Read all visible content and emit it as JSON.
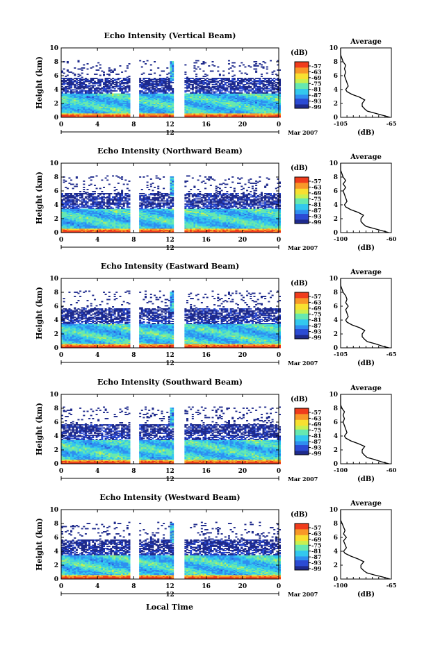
{
  "figure": {
    "x_title": "Local Time",
    "date_label": "Mar 2007",
    "day_mark_label": "12",
    "colorbar_unit": "(dB)",
    "colorbar_ticks": [
      "-57",
      "-63",
      "-69",
      "-75",
      "-81",
      "-87",
      "-93",
      "-99"
    ],
    "colormap": [
      "#1e2a8c",
      "#2b4bd4",
      "#2f8ff0",
      "#33c8ee",
      "#66e8b0",
      "#c8f050",
      "#f8e030",
      "#f89828",
      "#f03c1c"
    ]
  },
  "chart_data": [
    {
      "type": "heatmap",
      "title": "Echo Intensity (Vertical Beam)",
      "ylabel": "Height (km)",
      "x_ticks": [
        "0",
        "4",
        "8",
        "12",
        "16",
        "20",
        "0"
      ],
      "y_ticks": [
        "0",
        "2",
        "4",
        "6",
        "8",
        "10"
      ],
      "xlim": [
        0,
        24
      ],
      "ylim": [
        0,
        10
      ],
      "data_gaps": [
        [
          7.7,
          8.5
        ],
        [
          12.4,
          13.4
        ]
      ],
      "avg_profile": {
        "title": "Average",
        "xlabel": "(dB)",
        "x_ticks": [
          "-105",
          "-65"
        ],
        "xlim": [
          -105,
          -65
        ],
        "ylim": [
          0,
          10
        ],
        "height": [
          0.0,
          0.3,
          0.6,
          0.9,
          1.2,
          1.6,
          2.0,
          2.5,
          2.9,
          3.3,
          3.7,
          4.0,
          4.5,
          5.0,
          5.5,
          6.0,
          6.5,
          7.0,
          7.5,
          8.0,
          8.5,
          9.0,
          10.0
        ],
        "db": [
          -66,
          -72,
          -78,
          -84,
          -86,
          -88,
          -88,
          -86,
          -90,
          -96,
          -100,
          -101,
          -99,
          -100,
          -101,
          -102,
          -101,
          -102,
          -101,
          -103,
          -104,
          -105,
          -105
        ]
      }
    },
    {
      "type": "heatmap",
      "title": "Echo Intensity (Northward Beam)",
      "ylabel": "Height (km)",
      "x_ticks": [
        "0",
        "4",
        "8",
        "12",
        "16",
        "20",
        "0"
      ],
      "y_ticks": [
        "0",
        "2",
        "4",
        "6",
        "8",
        "10"
      ],
      "xlim": [
        0,
        24
      ],
      "ylim": [
        0,
        10
      ],
      "data_gaps": [
        [
          7.7,
          8.5
        ],
        [
          12.4,
          13.4
        ]
      ],
      "avg_profile": {
        "title": "Average",
        "xlabel": "(dB)",
        "x_ticks": [
          "-100",
          "-60"
        ],
        "xlim": [
          -100,
          -60
        ],
        "ylim": [
          0,
          10
        ],
        "height": [
          0.0,
          0.3,
          0.6,
          0.9,
          1.2,
          1.6,
          2.0,
          2.5,
          2.9,
          3.3,
          3.7,
          4.0,
          4.5,
          5.0,
          5.5,
          6.0,
          6.5,
          7.0,
          7.5,
          8.0,
          8.5,
          9.0,
          10.0
        ],
        "db": [
          -62,
          -68,
          -74,
          -80,
          -82,
          -84,
          -84,
          -82,
          -86,
          -92,
          -96,
          -97,
          -95,
          -96,
          -97,
          -98,
          -96,
          -98,
          -96,
          -98,
          -99,
          -100,
          -100
        ]
      }
    },
    {
      "type": "heatmap",
      "title": "Echo Intensity (Eastward Beam)",
      "ylabel": "Height (km)",
      "x_ticks": [
        "0",
        "4",
        "8",
        "12",
        "16",
        "20",
        "0"
      ],
      "y_ticks": [
        "0",
        "2",
        "4",
        "6",
        "8",
        "10"
      ],
      "xlim": [
        0,
        24
      ],
      "ylim": [
        0,
        10
      ],
      "data_gaps": [
        [
          7.7,
          8.5
        ],
        [
          12.4,
          13.4
        ]
      ],
      "avg_profile": {
        "title": "Average",
        "xlabel": "(dB)",
        "x_ticks": [
          "-105",
          "-65"
        ],
        "xlim": [
          -105,
          -65
        ],
        "ylim": [
          0,
          10
        ],
        "height": [
          0.0,
          0.3,
          0.6,
          0.9,
          1.2,
          1.6,
          2.0,
          2.5,
          2.9,
          3.3,
          3.7,
          4.0,
          4.5,
          5.0,
          5.5,
          6.0,
          6.5,
          7.0,
          7.5,
          8.0,
          8.5,
          9.0,
          10.0
        ],
        "db": [
          -67,
          -73,
          -78,
          -84,
          -86,
          -88,
          -88,
          -86,
          -90,
          -96,
          -100,
          -101,
          -99,
          -100,
          -101,
          -99,
          -101,
          -100,
          -101,
          -103,
          -104,
          -105,
          -105
        ]
      }
    },
    {
      "type": "heatmap",
      "title": "Echo Intensity (Southward Beam)",
      "ylabel": "Height (km)",
      "x_ticks": [
        "0",
        "4",
        "8",
        "12",
        "16",
        "20",
        "0"
      ],
      "y_ticks": [
        "0",
        "2",
        "4",
        "6",
        "8",
        "10"
      ],
      "xlim": [
        0,
        24
      ],
      "ylim": [
        0,
        10
      ],
      "data_gaps": [
        [
          7.7,
          8.5
        ],
        [
          12.4,
          13.4
        ]
      ],
      "avg_profile": {
        "title": "Average",
        "xlabel": "(dB)",
        "x_ticks": [
          "-100",
          "-60"
        ],
        "xlim": [
          -100,
          -60
        ],
        "ylim": [
          0,
          10
        ],
        "height": [
          0.0,
          0.3,
          0.6,
          0.9,
          1.2,
          1.6,
          2.0,
          2.5,
          2.9,
          3.3,
          3.7,
          4.0,
          4.5,
          5.0,
          5.5,
          6.0,
          6.5,
          7.0,
          7.5,
          8.0,
          8.5,
          9.0,
          10.0
        ],
        "db": [
          -62,
          -68,
          -73,
          -79,
          -81,
          -83,
          -83,
          -81,
          -86,
          -92,
          -96,
          -97,
          -95,
          -96,
          -97,
          -98,
          -97,
          -98,
          -97,
          -99,
          -100,
          -100,
          -100
        ]
      }
    },
    {
      "type": "heatmap",
      "title": "Echo Intensity (Westward Beam)",
      "ylabel": "Height (km)",
      "x_ticks": [
        "0",
        "4",
        "8",
        "12",
        "16",
        "20",
        "0"
      ],
      "y_ticks": [
        "0",
        "2",
        "4",
        "6",
        "8",
        "10"
      ],
      "xlim": [
        0,
        24
      ],
      "ylim": [
        0,
        10
      ],
      "data_gaps": [
        [
          7.7,
          8.5
        ],
        [
          12.4,
          13.4
        ]
      ],
      "avg_profile": {
        "title": "Average",
        "xlabel": "(dB)",
        "x_ticks": [
          "-100",
          "-65"
        ],
        "xlim": [
          -100,
          -65
        ],
        "ylim": [
          0,
          10
        ],
        "height": [
          0.0,
          0.3,
          0.6,
          0.9,
          1.2,
          1.6,
          2.0,
          2.5,
          2.9,
          3.3,
          3.7,
          4.0,
          4.5,
          5.0,
          5.5,
          6.0,
          6.5,
          7.0,
          7.5,
          8.0,
          8.5,
          9.0,
          10.0
        ],
        "db": [
          -66,
          -71,
          -77,
          -82,
          -84,
          -86,
          -86,
          -84,
          -88,
          -93,
          -97,
          -98,
          -96,
          -97,
          -98,
          -96,
          -98,
          -97,
          -98,
          -99,
          -100,
          -100,
          -100
        ]
      }
    }
  ]
}
